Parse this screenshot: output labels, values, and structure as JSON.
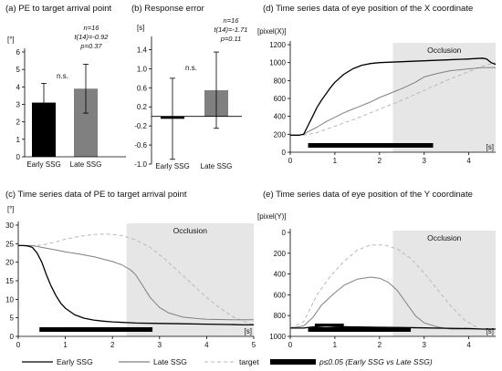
{
  "charts": [
    {
      "id": "a",
      "title": "(a) PE to target arrival point",
      "unit": "[°]",
      "type": "bar",
      "categories": [
        "Early SSG",
        "Late SSG"
      ],
      "values": [
        3.1,
        3.9
      ],
      "errors": [
        1.1,
        1.4
      ],
      "colors": [
        "#000000",
        "#808080"
      ],
      "ylim": [
        0,
        6
      ],
      "yticks": [
        "0",
        "1",
        "2",
        "3",
        "4",
        "5",
        "6"
      ],
      "stat_lines": [
        "n=16",
        "t(14)=-0.92",
        "p=0.37"
      ],
      "sig_label": "n.s."
    },
    {
      "id": "b",
      "title": "(b) Response error",
      "unit": "[s]",
      "type": "bar",
      "categories": [
        "Early SSG",
        "Late SSG"
      ],
      "values": [
        -0.05,
        0.55
      ],
      "errors": [
        0.85,
        0.8
      ],
      "colors": [
        "#000000",
        "#808080"
      ],
      "ylim": [
        -1.0,
        1.6
      ],
      "yticks": [
        "-1.0",
        "-0.6",
        "-0.2",
        "0.2",
        "0.6",
        "1.0",
        "1.4"
      ],
      "stat_lines": [
        "n=16",
        "t(14)=-1.71",
        "p=0.11"
      ],
      "sig_label": "n.s."
    },
    {
      "id": "c",
      "title": "(c) Time series data of PE to target arrival point",
      "unit": "[°]",
      "type": "line",
      "xlim": [
        0,
        5
      ],
      "xticks": [
        "0",
        "1",
        "2",
        "3",
        "4",
        "5"
      ],
      "xunit": "[s]",
      "ylim": [
        0,
        30
      ],
      "yticks": [
        "0",
        "5",
        "10",
        "15",
        "20",
        "25",
        "30"
      ],
      "occlusion_label": "Occlusion",
      "occlusion": [
        2.3,
        5.0
      ],
      "sig_bar": [
        0.45,
        2.85
      ],
      "series": [
        {
          "key": "early",
          "x": [
            0,
            0.1,
            0.2,
            0.3,
            0.4,
            0.5,
            0.6,
            0.7,
            0.8,
            0.9,
            1.0,
            1.2,
            1.4,
            1.6,
            1.8,
            2.0,
            2.5,
            3.0,
            3.5,
            4.0,
            4.5,
            4.8,
            5.0
          ],
          "y": [
            24.5,
            24.5,
            24.4,
            24.0,
            22.5,
            20.0,
            16.5,
            13.5,
            11.0,
            9.0,
            7.6,
            5.8,
            4.9,
            4.4,
            4.1,
            3.9,
            3.6,
            3.5,
            3.4,
            3.3,
            3.2,
            3.1,
            3.1
          ]
        },
        {
          "key": "late",
          "x": [
            0,
            0.3,
            0.5,
            0.8,
            1.0,
            1.3,
            1.6,
            2.0,
            2.2,
            2.4,
            2.5,
            2.6,
            2.8,
            3.0,
            3.2,
            3.5,
            3.8,
            4.0,
            4.5,
            5.0
          ],
          "y": [
            24.5,
            24.5,
            24.0,
            23.3,
            22.8,
            22.2,
            21.5,
            20.2,
            19.3,
            17.8,
            16.5,
            14.5,
            10.5,
            7.8,
            6.3,
            5.2,
            4.8,
            4.6,
            4.5,
            4.5
          ]
        },
        {
          "key": "target",
          "x": [
            0,
            0.3,
            0.5,
            0.8,
            1.0,
            1.3,
            1.6,
            1.9,
            2.2,
            2.5,
            2.8,
            3.1,
            3.4,
            3.7,
            4.0,
            4.3,
            4.6,
            4.9,
            5.0
          ],
          "y": [
            24.5,
            24.5,
            24.6,
            25.5,
            26.2,
            27.0,
            27.5,
            27.6,
            27.2,
            26.0,
            24.0,
            21.0,
            17.5,
            14.0,
            10.5,
            7.5,
            5.0,
            3.5,
            3.3
          ]
        }
      ]
    },
    {
      "id": "d",
      "title": "(d) Time series data of eye position of the X coordinate",
      "unit": "[pixel(X)]",
      "type": "line",
      "xlim": [
        0,
        4.6
      ],
      "xticks": [
        "0",
        "1",
        "2",
        "3",
        "4"
      ],
      "xunit": "[s]",
      "ylim": [
        0,
        1200
      ],
      "yticks": [
        "0",
        "200",
        "400",
        "600",
        "800",
        "1000",
        "1200"
      ],
      "occlusion_label": "Occlusion",
      "occlusion": [
        2.3,
        4.6
      ],
      "sig_bar": [
        0.4,
        3.2
      ],
      "series": [
        {
          "key": "early",
          "x": [
            0,
            0.2,
            0.3,
            0.4,
            0.5,
            0.6,
            0.7,
            0.8,
            0.9,
            1.0,
            1.2,
            1.4,
            1.6,
            1.8,
            2.0,
            2.5,
            3.0,
            3.5,
            4.0,
            4.3,
            4.4,
            4.5,
            4.6
          ],
          "y": [
            190,
            190,
            200,
            300,
            400,
            500,
            580,
            650,
            720,
            780,
            870,
            930,
            970,
            990,
            1000,
            1010,
            1020,
            1030,
            1040,
            1050,
            1040,
            1000,
            980
          ]
        },
        {
          "key": "late",
          "x": [
            0,
            0.2,
            0.3,
            0.4,
            0.6,
            0.8,
            1.0,
            1.2,
            1.5,
            1.8,
            2.0,
            2.3,
            2.5,
            2.8,
            3.0,
            3.3,
            3.6,
            4.0,
            4.3,
            4.6
          ],
          "y": [
            190,
            190,
            200,
            230,
            280,
            340,
            390,
            440,
            500,
            560,
            610,
            670,
            710,
            780,
            840,
            880,
            910,
            930,
            945,
            945
          ]
        },
        {
          "key": "target",
          "x": [
            0,
            0.3,
            0.6,
            1.0,
            1.5,
            2.0,
            2.5,
            3.0,
            3.5,
            4.0,
            4.3,
            4.6
          ],
          "y": [
            190,
            190,
            220,
            290,
            380,
            480,
            580,
            690,
            800,
            900,
            960,
            1000
          ]
        }
      ]
    },
    {
      "id": "e",
      "title": "(e) Time series data of eye position of the Y coordinate",
      "unit": "[pixel(Y)]",
      "type": "line",
      "xlim": [
        0,
        4.6
      ],
      "xticks": [
        "0",
        "1",
        "2",
        "3",
        "4"
      ],
      "xunit": "[s]",
      "ylim": [
        1000,
        0
      ],
      "yticks": [
        "0",
        "200",
        "400",
        "600",
        "800",
        "1000"
      ],
      "occlusion_label": "Occlusion",
      "occlusion": [
        2.3,
        4.6
      ],
      "sig_bar": [
        0.4,
        2.7
      ],
      "sig_bar_short": [
        0.55,
        1.2
      ],
      "series": [
        {
          "key": "early",
          "x": [
            0,
            0.3,
            0.5,
            0.8,
            1.0,
            1.5,
            2.0,
            2.5,
            3.0,
            3.5,
            4.0,
            4.3,
            4.6
          ],
          "y": [
            920,
            920,
            910,
            900,
            905,
            910,
            912,
            915,
            918,
            922,
            925,
            930,
            930
          ]
        },
        {
          "key": "late",
          "x": [
            0,
            0.3,
            0.5,
            0.7,
            1.0,
            1.2,
            1.5,
            1.8,
            2.0,
            2.2,
            2.4,
            2.6,
            2.8,
            3.0,
            3.3,
            3.6,
            4.0,
            4.6
          ],
          "y": [
            920,
            900,
            820,
            700,
            580,
            510,
            450,
            430,
            440,
            480,
            560,
            680,
            800,
            870,
            910,
            930,
            930,
            930
          ]
        },
        {
          "key": "target",
          "x": [
            0,
            0.3,
            0.6,
            0.9,
            1.2,
            1.5,
            1.8,
            2.1,
            2.4,
            2.7,
            3.0,
            3.3,
            3.6,
            3.9,
            4.2,
            4.5,
            4.6
          ],
          "y": [
            920,
            860,
            600,
            420,
            280,
            170,
            120,
            120,
            160,
            250,
            390,
            550,
            710,
            840,
            920,
            960,
            960
          ]
        }
      ]
    }
  ],
  "legend": {
    "early": "Early SSG",
    "late": "Late SSG",
    "target": "target",
    "sig": "p≤0.05 (Early SSG vs Late SSG)"
  },
  "colors": {
    "early": "#000000",
    "late": "#808080",
    "target": "#b8b8b8",
    "occlusion": "#e6e6e6",
    "sig_bar": "#000000"
  }
}
